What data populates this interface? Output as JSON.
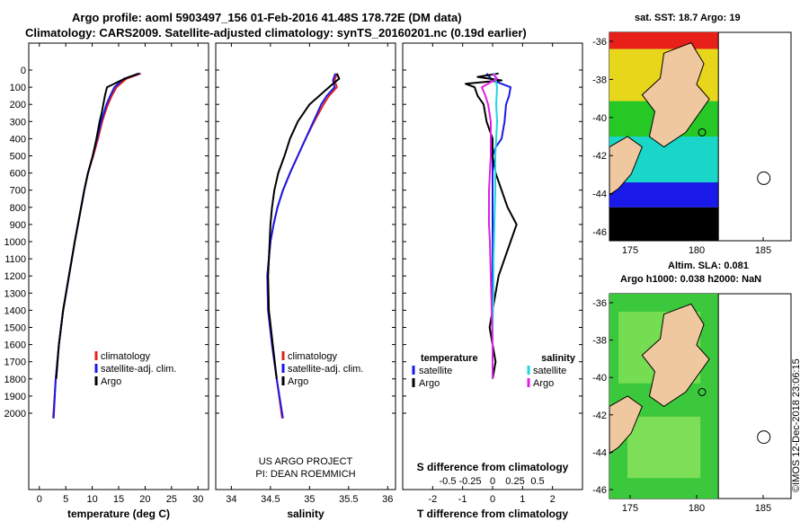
{
  "header": {
    "title_line1": "Argo profile: aoml 5903497_156 01-Feb-2016 41.48S 178.72E (DM data)",
    "title_line2": "Climatology: CARS2009. Satellite-adjusted climatology: synTS_20160201.nc (0.19d earlier)"
  },
  "colors": {
    "climatology": "#e8201a",
    "satellite": "#1a1ae8",
    "argo": "#000000",
    "salinity_satellite": "#22d6e0",
    "salinity_argo": "#e020e0"
  },
  "depth_ticks": [
    "0",
    "100",
    "200",
    "300",
    "400",
    "500",
    "600",
    "700",
    "800",
    "900",
    "1000",
    "1100",
    "1200",
    "1300",
    "1400",
    "1500",
    "1600",
    "1700",
    "1800",
    "1900",
    "2000"
  ],
  "chart_data": [
    {
      "type": "line",
      "id": "temperature",
      "xlabel": "temperature (deg C)",
      "ylabel": "",
      "xlim": [
        -2,
        32
      ],
      "ylim": [
        2070,
        0
      ],
      "x_ticks": [
        "0",
        "5",
        "10",
        "15",
        "20",
        "25",
        "30"
      ],
      "legend": [
        "climatology",
        "satellite-adj. clim.",
        "Argo"
      ],
      "series": [
        {
          "name": "climatology",
          "color": "#e8201a",
          "depth": [
            20,
            50,
            100,
            150,
            200,
            250,
            300,
            400,
            500,
            600,
            700,
            800,
            900,
            1000,
            1200,
            1400,
            1600,
            1800,
            2030
          ],
          "values": [
            19.2,
            16.5,
            14.6,
            13.7,
            13.0,
            12.4,
            11.9,
            11.1,
            10.2,
            9.2,
            8.5,
            7.9,
            7.3,
            6.7,
            5.6,
            4.5,
            3.7,
            3.1,
            2.6
          ]
        },
        {
          "name": "satellite-adj. clim.",
          "color": "#1a1ae8",
          "depth": [
            20,
            50,
            100,
            150,
            200,
            250,
            300,
            400,
            500,
            600,
            700,
            800,
            900,
            1000,
            1200,
            1400,
            1600,
            1800,
            2030
          ],
          "values": [
            19.0,
            16.0,
            14.2,
            13.4,
            12.7,
            12.2,
            11.7,
            10.9,
            10.1,
            9.2,
            8.5,
            7.9,
            7.3,
            6.7,
            5.6,
            4.5,
            3.7,
            3.1,
            2.7
          ]
        },
        {
          "name": "Argo",
          "color": "#000000",
          "depth": [
            20,
            40,
            60,
            100,
            150,
            200,
            250,
            300,
            400,
            500,
            600,
            700,
            800,
            900,
            1000,
            1200,
            1400,
            1600,
            1800
          ],
          "values": [
            18.8,
            17.0,
            15.5,
            12.8,
            12.4,
            12.1,
            11.8,
            11.4,
            10.8,
            10.1,
            9.2,
            8.5,
            7.9,
            7.3,
            6.7,
            5.6,
            4.5,
            3.7,
            3.2
          ]
        }
      ]
    },
    {
      "type": "line",
      "id": "salinity",
      "xlabel": "salinity",
      "ylabel": "",
      "xlim": [
        33.8,
        36.1
      ],
      "ylim": [
        2070,
        0
      ],
      "x_ticks": [
        "34",
        "34.5",
        "35",
        "35.5",
        "36"
      ],
      "legend": [
        "climatology",
        "satellite-adj. clim.",
        "Argo"
      ],
      "annotation": [
        "US ARGO PROJECT",
        "PI: DEAN ROEMMICH"
      ],
      "series": [
        {
          "name": "climatology",
          "color": "#e8201a",
          "depth": [
            20,
            60,
            100,
            150,
            200,
            250,
            300,
            400,
            500,
            600,
            700,
            800,
            900,
            1000,
            1200,
            1400,
            1600,
            1800,
            2030
          ],
          "values": [
            35.35,
            35.32,
            35.35,
            35.25,
            35.18,
            35.12,
            35.06,
            34.95,
            34.85,
            34.75,
            34.66,
            34.59,
            34.54,
            34.5,
            34.46,
            34.47,
            34.52,
            34.58,
            34.65
          ]
        },
        {
          "name": "satellite-adj. clim.",
          "color": "#1a1ae8",
          "depth": [
            20,
            60,
            100,
            150,
            200,
            250,
            300,
            400,
            500,
            600,
            700,
            800,
            900,
            1000,
            1200,
            1400,
            1600,
            1800,
            2030
          ],
          "values": [
            35.33,
            35.3,
            35.32,
            35.22,
            35.15,
            35.1,
            35.05,
            34.95,
            34.85,
            34.75,
            34.66,
            34.59,
            34.54,
            34.5,
            34.46,
            34.47,
            34.52,
            34.58,
            34.66
          ]
        },
        {
          "name": "Argo",
          "color": "#000000",
          "depth": [
            20,
            50,
            80,
            120,
            200,
            300,
            400,
            500,
            600,
            700,
            800,
            900,
            1000,
            1200,
            1400,
            1600,
            1800
          ],
          "values": [
            35.35,
            35.38,
            35.3,
            35.2,
            35.0,
            34.85,
            34.75,
            34.68,
            34.6,
            34.55,
            34.52,
            34.5,
            34.49,
            34.47,
            34.48,
            34.53,
            34.58
          ]
        }
      ]
    },
    {
      "type": "line",
      "id": "difference",
      "xlabel": "T difference from climatology",
      "x2label": "S difference from climatology",
      "xlim": [
        -3,
        3
      ],
      "ylim": [
        2070,
        0
      ],
      "x_ticks": [
        "-2",
        "-1",
        "0",
        "1",
        "2"
      ],
      "x2_ticks": [
        "-0.5",
        "-0.25",
        "0",
        "0.25",
        "0.5"
      ],
      "legend_left": {
        "title": "temperature",
        "items": [
          "satellite",
          "Argo"
        ]
      },
      "legend_right": {
        "title": "salinity",
        "items": [
          "satellite",
          "Argo"
        ]
      },
      "series": [
        {
          "name": "temperature satellite",
          "color": "#1a1ae8",
          "depth": [
            20,
            60,
            100,
            150,
            200,
            300,
            400,
            450,
            500,
            600,
            700,
            800,
            900,
            1000,
            1200,
            1400,
            1600,
            1800
          ],
          "values": [
            -0.2,
            0.0,
            0.6,
            0.55,
            0.45,
            0.4,
            0.3,
            0.1,
            0.0,
            0.0,
            0.0,
            0.0,
            0.0,
            0.0,
            0.0,
            0.0,
            0.0,
            0.0
          ]
        },
        {
          "name": "temperature Argo",
          "color": "#000000",
          "depth": [
            20,
            40,
            60,
            80,
            100,
            150,
            200,
            300,
            400,
            500,
            600,
            700,
            800,
            900,
            1000,
            1100,
            1200,
            1300,
            1400,
            1500,
            1600,
            1700,
            1800
          ],
          "values": [
            0.2,
            -0.5,
            0.3,
            -0.9,
            -0.6,
            -0.5,
            -0.3,
            -0.2,
            0.0,
            0.0,
            0.1,
            0.3,
            0.5,
            0.8,
            0.6,
            0.4,
            0.2,
            0.1,
            0.0,
            -0.1,
            0.0,
            0.1,
            0.0
          ]
        },
        {
          "name": "salinity satellite",
          "color": "#22d6e0",
          "depth": [
            20,
            100,
            200,
            300,
            400,
            500,
            700,
            900,
            1100,
            1300,
            1500,
            1700,
            1800
          ],
          "values": [
            0.02,
            0.05,
            0.04,
            0.05,
            0.04,
            0.03,
            0.03,
            0.02,
            0.01,
            0.01,
            0.0,
            0.0,
            0.0
          ]
        },
        {
          "name": "salinity Argo",
          "color": "#e020e0",
          "depth": [
            20,
            50,
            100,
            150,
            200,
            300,
            400,
            500,
            600,
            700,
            800,
            900,
            1000,
            1200,
            1400,
            1600,
            1800
          ],
          "values": [
            0.0,
            0.05,
            -0.12,
            -0.08,
            -0.05,
            -0.02,
            -0.02,
            -0.02,
            -0.03,
            -0.04,
            -0.04,
            -0.04,
            -0.03,
            -0.02,
            -0.01,
            0.0,
            0.0
          ]
        }
      ]
    }
  ],
  "maps": [
    {
      "id": "sst",
      "title": "sat. SST: 18.7 Argo: 19",
      "lat_ticks": [
        "-36",
        "-38",
        "-40",
        "-42",
        "-44",
        "-46"
      ],
      "lon_ticks": [
        "175",
        "180",
        "185"
      ]
    },
    {
      "id": "sla",
      "title_line1": "Altim. SLA: 0.081",
      "title_line2": "Argo h1000: 0.038 h2000: NaN",
      "lat_ticks": [
        "-36",
        "-38",
        "-40",
        "-42",
        "-44",
        "-46"
      ],
      "lon_ticks": [
        "175",
        "180",
        "185"
      ]
    }
  ],
  "footer": {
    "credit": "©IMOS 12-Dec-2018 23:06:15"
  }
}
